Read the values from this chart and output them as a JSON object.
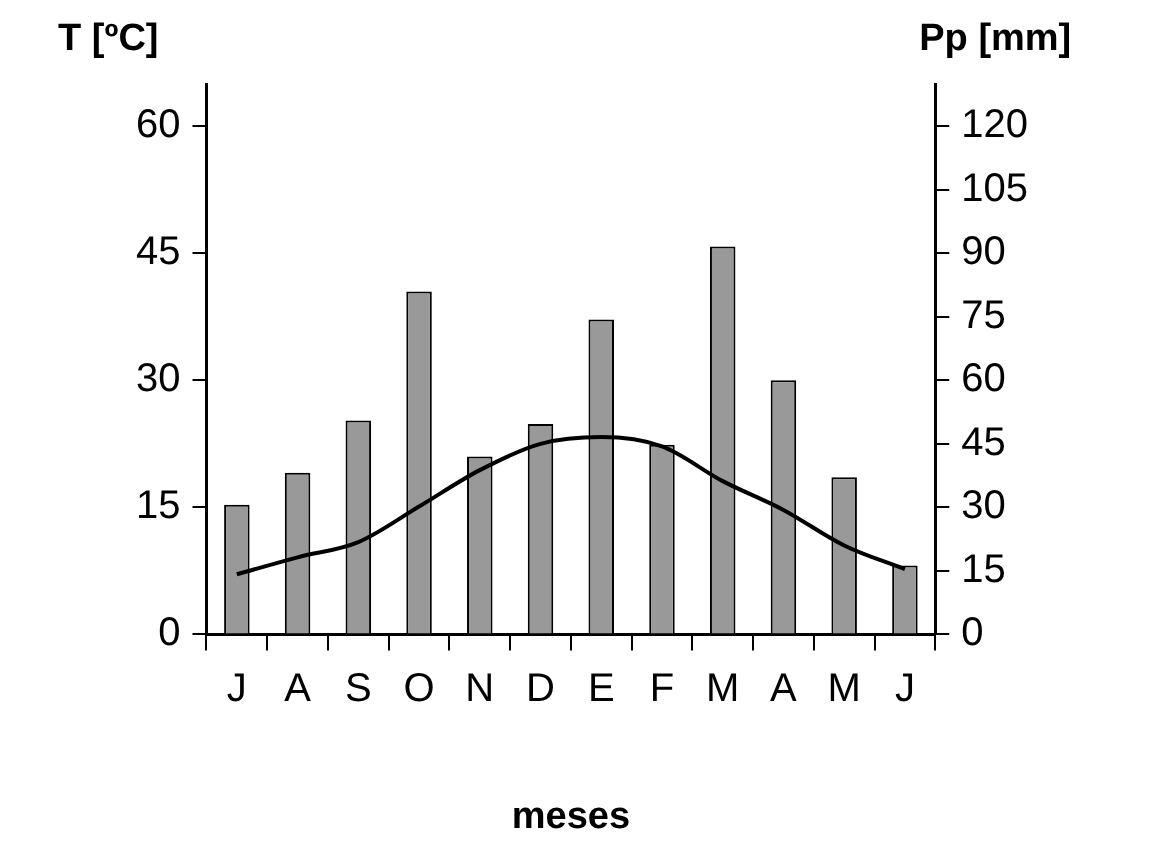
{
  "chart_data": {
    "type": "bar",
    "xlabel": "meses",
    "ylabel": "T [ºC]",
    "y2label": "Pp [mm]",
    "categories": [
      "J",
      "A",
      "S",
      "O",
      "N",
      "D",
      "E",
      "F",
      "M",
      "A",
      "M",
      "J"
    ],
    "series": [
      {
        "axis": "y2",
        "color": "#999999",
        "values": [
          30.6,
          38.2,
          50.5,
          81,
          42,
          49.7,
          74.4,
          44.8,
          91.6,
          60,
          37.1,
          16.3
        ]
      },
      {
        "type": "line",
        "axis": "y",
        "color": "#000000",
        "values": [
          7.1,
          9.1,
          10.9,
          15.1,
          19.4,
          22.5,
          23.3,
          22.2,
          18.1,
          14.7,
          10.5,
          7.7
        ]
      }
    ],
    "ylim": [
      0,
      65
    ],
    "yticks": [
      0,
      15,
      30,
      45,
      60
    ],
    "y2lim": [
      0,
      130
    ],
    "y2ticks": [
      0,
      15,
      30,
      45,
      60,
      75,
      90,
      105,
      120
    ],
    "grid": false,
    "legend": false,
    "marker": "none",
    "line_style": "solid"
  }
}
